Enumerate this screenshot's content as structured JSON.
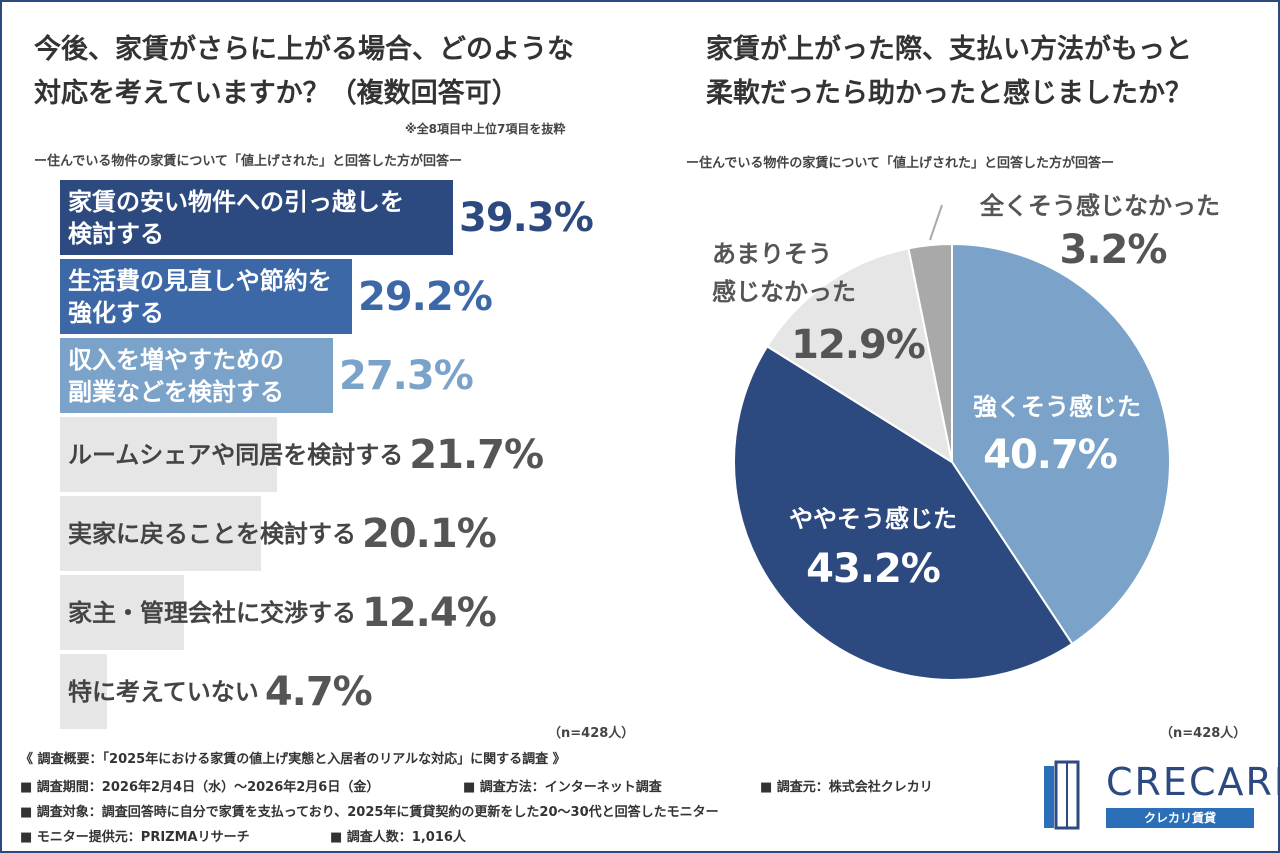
{
  "chart_data": [
    {
      "type": "bar",
      "title": "今後、家賃がさらに上がる場合、どのような\n対応を考えていますか？（複数回答可）",
      "note": "※全8項目中上位7項目を抜粋",
      "subtitle": "ー住んでいる物件の家賃について「値上げされた」と回答した方が回答ー",
      "categories": [
        "家賃の安い物件への引っ越しを\n検討する",
        "生活費の見直しや節約を\n強化する",
        "収入を増やすための\n副業などを検討する",
        "ルームシェアや同居を検討する",
        "実家に戻ることを検討する",
        "家主・管理会社に交渉する",
        "特に考えていない"
      ],
      "values": [
        39.3,
        29.2,
        27.3,
        21.7,
        20.1,
        12.4,
        4.7
      ],
      "value_labels": [
        "39.3%",
        "29.2%",
        "27.3%",
        "21.7%",
        "20.1%",
        "12.4%",
        "4.7%"
      ],
      "colors": [
        "#2d4a80",
        "#3d68a8",
        "#7ba3c9",
        "#e6e6e6",
        "#e6e6e6",
        "#e6e6e6",
        "#e6e6e6"
      ],
      "sample": "（n=428人）"
    },
    {
      "type": "pie",
      "title": "家賃が上がった際、支払い方法がもっと\n柔軟だったら助かったと感じましたか？",
      "subtitle": "ー住んでいる物件の家賃について「値上げされた」と回答した方が回答ー",
      "categories": [
        "強くそう感じた",
        "ややそう感じた",
        "あまりそう\n感じなかった",
        "全くそう感じなかった"
      ],
      "values": [
        40.7,
        43.2,
        12.9,
        3.2
      ],
      "value_labels": [
        "40.7%",
        "43.2%",
        "12.9%",
        "3.2%"
      ],
      "colors": [
        "#7ba3c9",
        "#2d4a80",
        "#e6e6e6",
        "#a9a9a9"
      ],
      "sample": "（n=428人）"
    }
  ],
  "footer": {
    "heading": "《 調査概要：「2025年における家賃の値上げ実態と入居者のリアルな対応」に関する調査 》",
    "items": [
      "■ 調査期間：2026年2月4日（水）～2026年2月6日（金）",
      "■ 調査方法：インターネット調査",
      "■ 調査元：株式会社クレカリ",
      "■ 調査対象：調査回答時に自分で家賃を支払っており、2025年に賃貸契約の更新をした20～30代と回答したモニター",
      "■ モニター提供元：PRIZMAリサーチ",
      "■ 調査人数：1,016人"
    ]
  },
  "logo": {
    "name": "CRECARI",
    "tagline": "クレカリ賃貸"
  }
}
